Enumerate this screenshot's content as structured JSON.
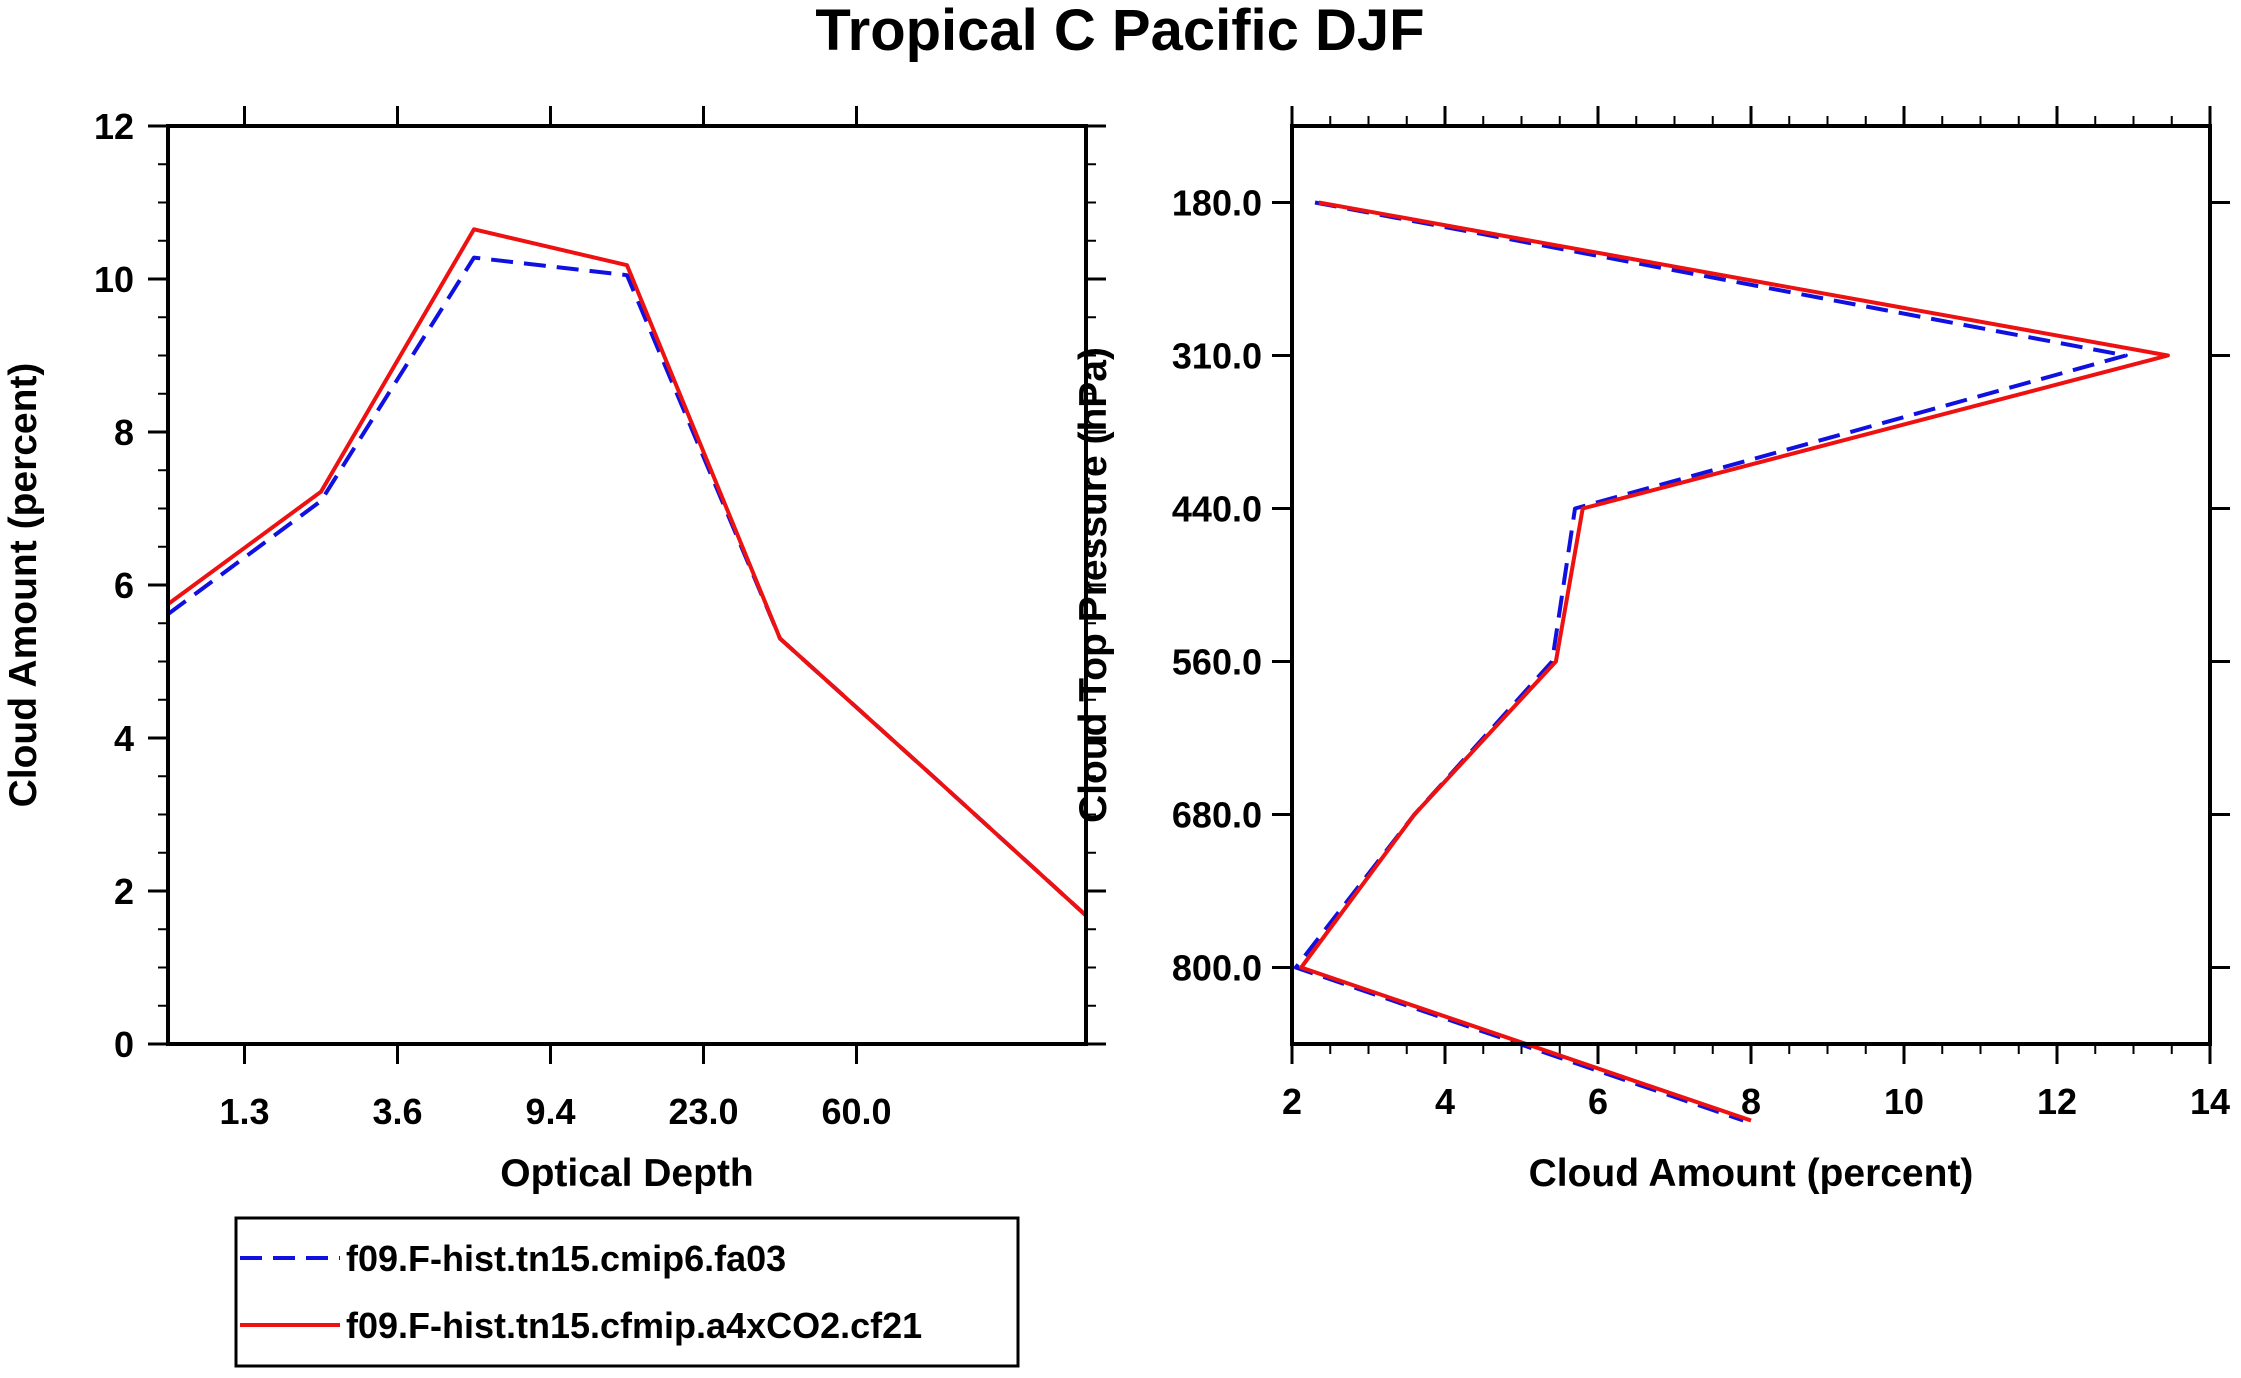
{
  "figure_title": "Tropical C Pacific DJF",
  "chart_data": [
    {
      "type": "line",
      "title": "Tropical C Pacific DJF",
      "xlabel": "Optical Depth",
      "ylabel": "Cloud Amount (percent)",
      "x_tick_labels": [
        "1.3",
        "3.6",
        "9.4",
        "23.0",
        "60.0"
      ],
      "y_tick_labels": [
        "0",
        "2",
        "4",
        "6",
        "8",
        "10",
        "12"
      ],
      "ylim": [
        0,
        12
      ],
      "x": [
        0.5,
        1.5,
        2.5,
        3.5,
        4.5,
        5.5,
        6.5
      ],
      "xlim": [
        0.5,
        6.5
      ],
      "x_tick_positions": [
        1,
        2,
        3,
        4,
        5
      ],
      "series": [
        {
          "name": "f09.F-hist.tn15.cmip6.fa03",
          "color": "#1010e0",
          "dash": "dashed",
          "values": [
            5.62,
            7.1,
            10.28,
            10.05,
            5.3,
            3.5,
            1.68
          ]
        },
        {
          "name": "f09.F-hist.tn15.cfmip.a4xCO2.cf21",
          "color": "#ee1111",
          "dash": "solid",
          "values": [
            5.75,
            7.22,
            10.65,
            10.18,
            5.3,
            3.5,
            1.68
          ]
        }
      ]
    },
    {
      "type": "line",
      "orientation": "vertical-profile",
      "xlabel": "Cloud Amount (percent)",
      "ylabel": "Cloud Top Pressure (hPa)",
      "x_tick_labels": [
        "2",
        "4",
        "6",
        "8",
        "10",
        "12",
        "14"
      ],
      "y_tick_labels": [
        "180.0",
        "310.0",
        "440.0",
        "560.0",
        "680.0",
        "800.0"
      ],
      "xlim": [
        2,
        14
      ],
      "level_index": [
        0.5,
        1.5,
        2.5,
        3.5,
        4.5,
        5.5,
        6.5
      ],
      "level_range": [
        0,
        6
      ],
      "y_tick_positions": [
        0.5,
        1.5,
        2.5,
        3.5,
        4.5,
        5.5
      ],
      "series": [
        {
          "name": "f09.F-hist.tn15.cmip6.fa03",
          "color": "#1010e0",
          "dash": "dashed",
          "values": [
            2.3,
            12.9,
            5.7,
            5.4,
            3.6,
            2.05,
            7.9
          ]
        },
        {
          "name": "f09.F-hist.tn15.cfmip.a4xCO2.cf21",
          "color": "#ee1111",
          "dash": "solid",
          "values": [
            2.35,
            13.45,
            5.8,
            5.45,
            3.6,
            2.12,
            8.0
          ]
        }
      ]
    }
  ],
  "legend": {
    "placement": "bottom-left",
    "entries": [
      {
        "label": "f09.F-hist.tn15.cmip6.fa03",
        "color": "#1010e0",
        "dash": "dashed"
      },
      {
        "label": "f09.F-hist.tn15.cfmip.a4xCO2.cf21",
        "color": "#ee1111",
        "dash": "solid"
      }
    ]
  }
}
